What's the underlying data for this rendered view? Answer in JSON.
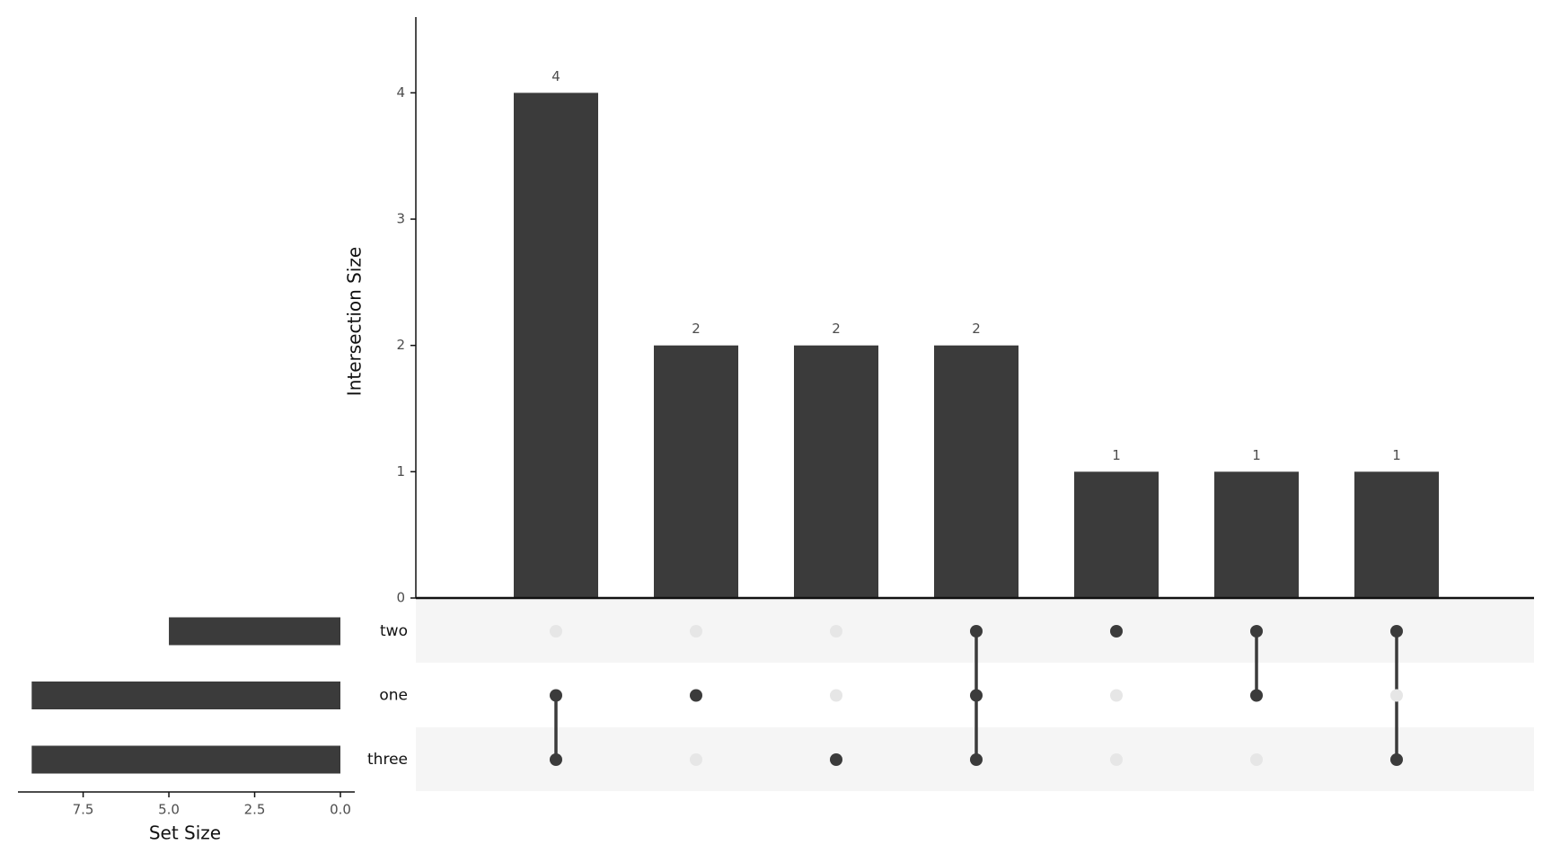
{
  "chart_data": {
    "type": "upset",
    "y_label": "Intersection Size",
    "x_label": "Set Size",
    "color": "#3b3b3b",
    "inactive_color": "#e6e6e6",
    "values": [
      4,
      2,
      2,
      2,
      1,
      1,
      1
    ],
    "ylim": [
      0,
      4.6
    ],
    "yticks": [
      0,
      1,
      2,
      3,
      4
    ],
    "sets": [
      "two",
      "one",
      "three"
    ],
    "set_sizes": [
      5,
      9,
      9
    ],
    "xlim": [
      0,
      9.4
    ],
    "xticks": [
      {
        "value": 0,
        "label": "0.0"
      },
      2.5,
      {
        "value": 5,
        "label": "5.0"
      },
      7.5
    ],
    "matrix": [
      [
        0,
        0,
        0,
        1,
        1,
        1,
        1
      ],
      [
        1,
        1,
        0,
        1,
        0,
        1,
        0
      ],
      [
        1,
        0,
        1,
        1,
        0,
        0,
        1
      ]
    ]
  }
}
